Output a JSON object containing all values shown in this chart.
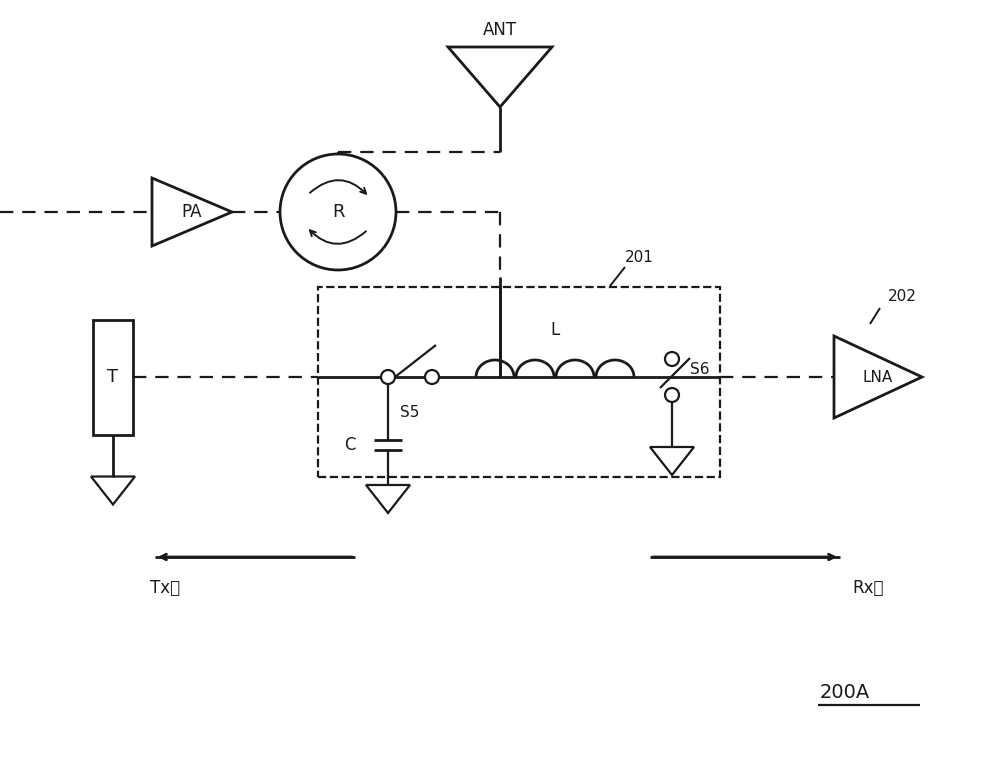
{
  "bg_color": "#ffffff",
  "line_color": "#1a1a1a",
  "title": "200A",
  "label_201": "201",
  "label_202": "202",
  "label_PA": "PA",
  "label_R": "R",
  "label_ANT": "ANT",
  "label_T": "T",
  "label_LNA": "LNA",
  "label_S5": "S5",
  "label_S6": "S6",
  "label_C": "C",
  "label_L": "L",
  "label_Tx": "Tx側",
  "label_Rx": "Rx側",
  "figsize": [
    10.0,
    7.67
  ],
  "dpi": 100
}
